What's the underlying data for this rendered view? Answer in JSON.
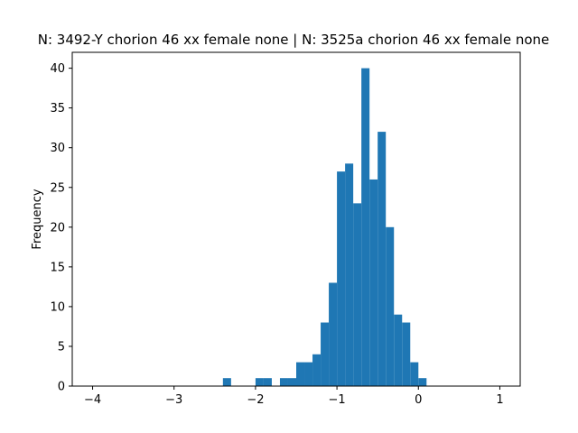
{
  "chart_data": {
    "type": "bar",
    "title": "N: 3492-Y chorion 46 xx female none | N: 3525a chorion 46 xx female none",
    "xlabel": "",
    "ylabel": "Frequency",
    "xlim": [
      -4.25,
      1.25
    ],
    "ylim": [
      0,
      42
    ],
    "x_ticks": [
      -4,
      -3,
      -2,
      -1,
      0,
      1
    ],
    "x_tick_labels": [
      "−4",
      "−3",
      "−2",
      "−1",
      "0",
      "1"
    ],
    "y_ticks": [
      0,
      5,
      10,
      15,
      20,
      25,
      30,
      35,
      40
    ],
    "y_tick_labels": [
      "0",
      "5",
      "10",
      "15",
      "20",
      "25",
      "30",
      "35",
      "40"
    ],
    "bar_color": "#1f77b4",
    "bins": [
      {
        "x0": -2.4,
        "x1": -2.3,
        "count": 1
      },
      {
        "x0": -2.0,
        "x1": -1.9,
        "count": 1
      },
      {
        "x0": -1.9,
        "x1": -1.8,
        "count": 1
      },
      {
        "x0": -1.7,
        "x1": -1.6,
        "count": 1
      },
      {
        "x0": -1.6,
        "x1": -1.5,
        "count": 1
      },
      {
        "x0": -1.5,
        "x1": -1.4,
        "count": 3
      },
      {
        "x0": -1.4,
        "x1": -1.3,
        "count": 3
      },
      {
        "x0": -1.3,
        "x1": -1.2,
        "count": 4
      },
      {
        "x0": -1.2,
        "x1": -1.1,
        "count": 8
      },
      {
        "x0": -1.1,
        "x1": -1.0,
        "count": 13
      },
      {
        "x0": -1.0,
        "x1": -0.9,
        "count": 27
      },
      {
        "x0": -0.9,
        "x1": -0.8,
        "count": 28
      },
      {
        "x0": -0.8,
        "x1": -0.7,
        "count": 23
      },
      {
        "x0": -0.7,
        "x1": -0.6,
        "count": 40
      },
      {
        "x0": -0.6,
        "x1": -0.5,
        "count": 26
      },
      {
        "x0": -0.5,
        "x1": -0.4,
        "count": 32
      },
      {
        "x0": -0.4,
        "x1": -0.3,
        "count": 20
      },
      {
        "x0": -0.3,
        "x1": -0.2,
        "count": 9
      },
      {
        "x0": -0.2,
        "x1": -0.1,
        "count": 8
      },
      {
        "x0": -0.1,
        "x1": 0.0,
        "count": 3
      },
      {
        "x0": 0.0,
        "x1": 0.1,
        "count": 1
      }
    ]
  }
}
